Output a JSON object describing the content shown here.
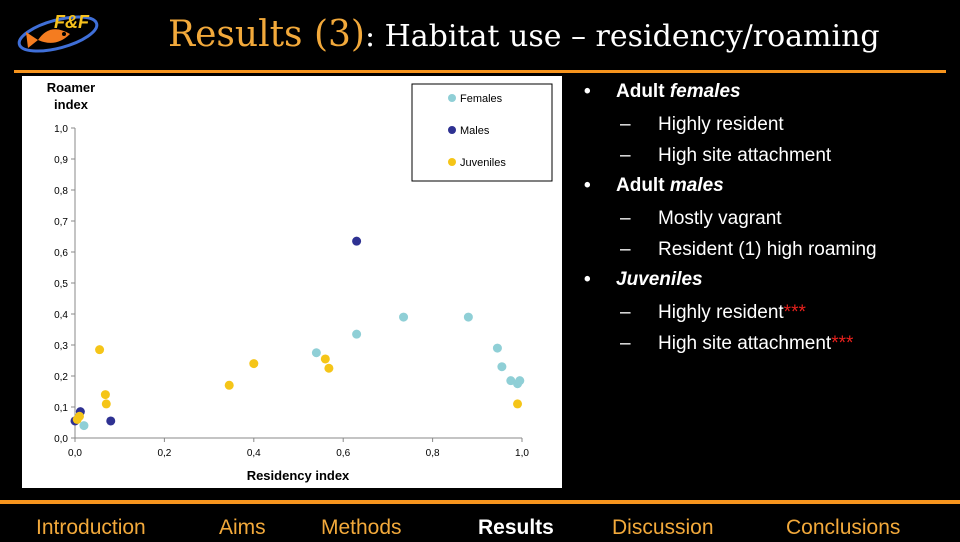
{
  "header": {
    "logo_text": "F&F",
    "title_main": "Results (3)",
    "title_sub": ": Habitat use – residency/roaming"
  },
  "bullets": [
    {
      "level": 1,
      "parts": [
        {
          "t": "Adult ",
          "i": false
        },
        {
          "t": "females",
          "i": true
        }
      ]
    },
    {
      "level": 2,
      "parts": [
        {
          "t": "Highly resident",
          "i": false
        }
      ]
    },
    {
      "level": 2,
      "parts": [
        {
          "t": "High site attachment",
          "i": false
        }
      ]
    },
    {
      "level": 1,
      "parts": [
        {
          "t": "Adult ",
          "i": false
        },
        {
          "t": "males",
          "i": true
        }
      ]
    },
    {
      "level": 2,
      "parts": [
        {
          "t": "Mostly vagrant",
          "i": false
        }
      ]
    },
    {
      "level": 2,
      "parts": [
        {
          "t": "Resident (1) high roaming",
          "i": false
        }
      ]
    },
    {
      "level": 1,
      "parts": [
        {
          "t": "Juveniles",
          "i": true
        }
      ]
    },
    {
      "level": 2,
      "parts": [
        {
          "t": "Highly resident",
          "i": false
        },
        {
          "t": "***",
          "i": false,
          "star": true
        }
      ]
    },
    {
      "level": 2,
      "parts": [
        {
          "t": "High site attachment",
          "i": false
        },
        {
          "t": "***",
          "i": false,
          "star": true
        }
      ]
    }
  ],
  "nav": [
    {
      "label": "Introduction",
      "active": false
    },
    {
      "label": "Aims",
      "active": false
    },
    {
      "label": "Methods",
      "active": false
    },
    {
      "label": "Results",
      "active": true
    },
    {
      "label": "Discussion",
      "active": false
    },
    {
      "label": "Conclusions",
      "active": false
    }
  ],
  "chart_data": {
    "type": "scatter",
    "xlabel": "Residency index",
    "ylabel": "Roamer index",
    "xlim": [
      0,
      1
    ],
    "ylim": [
      0,
      1
    ],
    "xticks": [
      "0,0",
      "0,2",
      "0,4",
      "0,6",
      "0,8",
      "1,0"
    ],
    "yticks": [
      "0,0",
      "0,1",
      "0,2",
      "0,3",
      "0,4",
      "0,5",
      "0,6",
      "0,7",
      "0,8",
      "0,9",
      "1,0"
    ],
    "legend_position": "top-right",
    "grid": false,
    "series": [
      {
        "name": "Females",
        "color": "#8fcfd6",
        "points": [
          [
            0.02,
            0.04
          ],
          [
            0.54,
            0.275
          ],
          [
            0.63,
            0.335
          ],
          [
            0.735,
            0.39
          ],
          [
            0.88,
            0.39
          ],
          [
            0.945,
            0.29
          ],
          [
            0.955,
            0.23
          ],
          [
            0.975,
            0.185
          ],
          [
            0.99,
            0.175
          ],
          [
            0.995,
            0.185
          ]
        ]
      },
      {
        "name": "Males",
        "color": "#2e3192",
        "points": [
          [
            0.0,
            0.055
          ],
          [
            0.012,
            0.085
          ],
          [
            0.08,
            0.055
          ],
          [
            0.63,
            0.635
          ]
        ]
      },
      {
        "name": "Juveniles",
        "color": "#f5c518",
        "points": [
          [
            0.005,
            0.06
          ],
          [
            0.01,
            0.07
          ],
          [
            0.055,
            0.285
          ],
          [
            0.068,
            0.14
          ],
          [
            0.07,
            0.11
          ],
          [
            0.345,
            0.17
          ],
          [
            0.4,
            0.24
          ],
          [
            0.56,
            0.255
          ],
          [
            0.568,
            0.225
          ],
          [
            0.99,
            0.11
          ]
        ]
      }
    ]
  }
}
